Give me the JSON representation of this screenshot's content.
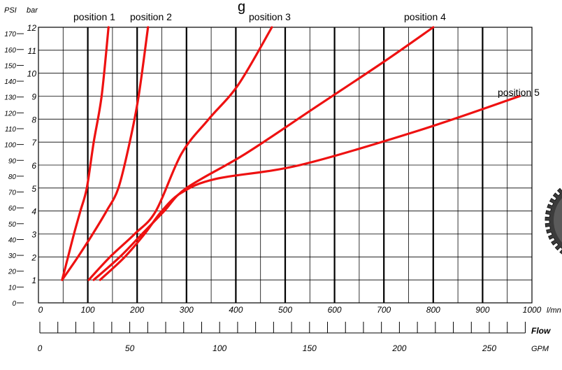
{
  "chart_data": {
    "type": "line",
    "title": "",
    "partial_title_fragment": "g",
    "x_axis": {
      "ticks": [
        "0",
        "100",
        "200",
        "300",
        "400",
        "500",
        "600",
        "700",
        "800",
        "900",
        "1000"
      ],
      "unit": "l/mn",
      "range": [
        0,
        1000
      ]
    },
    "y_axis_bar": {
      "unit": "bar",
      "ticks": [
        "1",
        "2",
        "3",
        "4",
        "5",
        "6",
        "7",
        "8",
        "9",
        "10",
        "11",
        "12"
      ],
      "range": [
        0,
        12
      ]
    },
    "y_axis_psi": {
      "unit": "PSI",
      "ticks": [
        "0",
        "10",
        "20",
        "30",
        "40",
        "50",
        "60",
        "70",
        "80",
        "90",
        "100",
        "110",
        "120",
        "130",
        "140",
        "150",
        "160",
        "170"
      ],
      "range": [
        0,
        174
      ]
    },
    "secondary_x_axis": {
      "label": "Flow",
      "unit": "GPM",
      "ticks": [
        "0",
        "50",
        "100",
        "150",
        "200",
        "250"
      ]
    },
    "grid": true,
    "colors": {
      "series": "#ee1111",
      "grid": "#000000",
      "background": "#ffffff"
    },
    "series": [
      {
        "name": "position 1",
        "x": [
          48,
          60,
          72,
          85,
          98,
          112,
          128,
          142
        ],
        "y": [
          1,
          2,
          3,
          4,
          5,
          7,
          9,
          12
        ]
      },
      {
        "name": "position 2",
        "x": [
          48,
          80,
          110,
          138,
          162,
          185,
          203,
          222
        ],
        "y": [
          1,
          2,
          3,
          4,
          5,
          7,
          9,
          12
        ]
      },
      {
        "name": "position 3",
        "x": [
          102,
          145,
          195,
          238,
          290,
          345,
          405,
          473
        ],
        "y": [
          1,
          2,
          3,
          4,
          6.5,
          8,
          9.5,
          12
        ]
      },
      {
        "name": "position 4",
        "x": [
          112,
          165,
          210,
          255,
          300,
          420,
          560,
          700,
          800
        ],
        "y": [
          1,
          2,
          3,
          4,
          5,
          6.5,
          8.5,
          10.5,
          12
        ]
      },
      {
        "name": "position 5",
        "x": [
          125,
          175,
          215,
          250,
          290,
          360,
          530,
          770,
          975
        ],
        "y": [
          1,
          2,
          3,
          4,
          4.8,
          5.4,
          6,
          7.5,
          9
        ]
      }
    ]
  }
}
